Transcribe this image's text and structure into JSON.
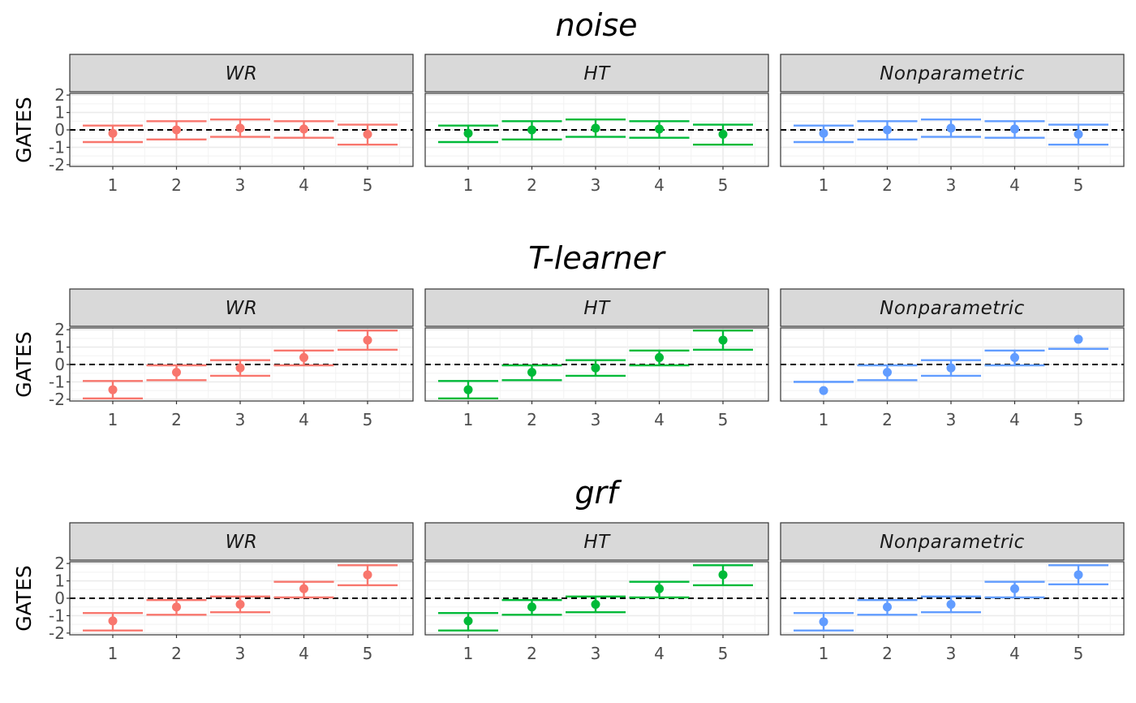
{
  "chart_data": {
    "type": "scatter",
    "ylabel": "GATES",
    "x_ticks": [
      "1",
      "2",
      "3",
      "4",
      "5"
    ],
    "ylim": [
      -2.1,
      2.1
    ],
    "y_ticks": [
      -2,
      -1,
      0,
      1,
      2
    ],
    "reference_line": {
      "y": 0,
      "style": "dashed",
      "color": "#000000"
    },
    "grid": true,
    "legend": "none",
    "facet_colors": {
      "WR": "#F8766D",
      "HT": "#00BA38",
      "Nonparametric": "#619CFF"
    },
    "rows": [
      {
        "title": "noise",
        "panels": [
          {
            "strip": "WR",
            "points": [
              {
                "x": 1,
                "y": -0.2,
                "lo": -0.7,
                "hi": 0.25
              },
              {
                "x": 2,
                "y": 0.0,
                "lo": -0.55,
                "hi": 0.5
              },
              {
                "x": 3,
                "y": 0.1,
                "lo": -0.4,
                "hi": 0.6
              },
              {
                "x": 4,
                "y": 0.05,
                "lo": -0.45,
                "hi": 0.5
              },
              {
                "x": 5,
                "y": -0.25,
                "lo": -0.85,
                "hi": 0.3
              }
            ]
          },
          {
            "strip": "HT",
            "points": [
              {
                "x": 1,
                "y": -0.2,
                "lo": -0.7,
                "hi": 0.25
              },
              {
                "x": 2,
                "y": 0.0,
                "lo": -0.55,
                "hi": 0.5
              },
              {
                "x": 3,
                "y": 0.1,
                "lo": -0.4,
                "hi": 0.6
              },
              {
                "x": 4,
                "y": 0.05,
                "lo": -0.45,
                "hi": 0.5
              },
              {
                "x": 5,
                "y": -0.25,
                "lo": -0.85,
                "hi": 0.3
              }
            ]
          },
          {
            "strip": "Nonparametric",
            "points": [
              {
                "x": 1,
                "y": -0.2,
                "lo": -0.7,
                "hi": 0.25
              },
              {
                "x": 2,
                "y": 0.0,
                "lo": -0.55,
                "hi": 0.5
              },
              {
                "x": 3,
                "y": 0.1,
                "lo": -0.4,
                "hi": 0.6
              },
              {
                "x": 4,
                "y": 0.05,
                "lo": -0.45,
                "hi": 0.5
              },
              {
                "x": 5,
                "y": -0.25,
                "lo": -0.85,
                "hi": 0.3
              }
            ]
          }
        ]
      },
      {
        "title": "T-learner",
        "panels": [
          {
            "strip": "WR",
            "points": [
              {
                "x": 1,
                "y": -1.45,
                "lo": -1.95,
                "hi": -0.95
              },
              {
                "x": 2,
                "y": -0.45,
                "lo": -0.9,
                "hi": -0.05
              },
              {
                "x": 3,
                "y": -0.2,
                "lo": -0.65,
                "hi": 0.25
              },
              {
                "x": 4,
                "y": 0.4,
                "lo": -0.05,
                "hi": 0.8
              },
              {
                "x": 5,
                "y": 1.4,
                "lo": 0.85,
                "hi": 1.95
              }
            ]
          },
          {
            "strip": "HT",
            "points": [
              {
                "x": 1,
                "y": -1.45,
                "lo": -1.95,
                "hi": -0.95
              },
              {
                "x": 2,
                "y": -0.45,
                "lo": -0.9,
                "hi": -0.05
              },
              {
                "x": 3,
                "y": -0.2,
                "lo": -0.65,
                "hi": 0.25
              },
              {
                "x": 4,
                "y": 0.4,
                "lo": -0.05,
                "hi": 0.8
              },
              {
                "x": 5,
                "y": 1.4,
                "lo": 0.85,
                "hi": 1.95
              }
            ]
          },
          {
            "strip": "Nonparametric",
            "points": [
              {
                "x": 1,
                "y": -1.5,
                "lo": -1.0,
                "hi": -1.0
              },
              {
                "x": 2,
                "y": -0.45,
                "lo": -0.9,
                "hi": -0.05
              },
              {
                "x": 3,
                "y": -0.2,
                "lo": -0.65,
                "hi": 0.25
              },
              {
                "x": 4,
                "y": 0.4,
                "lo": -0.05,
                "hi": 0.8
              },
              {
                "x": 5,
                "y": 1.45,
                "lo": 0.9,
                "hi": 0.9
              }
            ]
          }
        ]
      },
      {
        "title": "grf",
        "panels": [
          {
            "strip": "WR",
            "points": [
              {
                "x": 1,
                "y": -1.3,
                "lo": -1.85,
                "hi": -0.85
              },
              {
                "x": 2,
                "y": -0.5,
                "lo": -0.95,
                "hi": -0.1
              },
              {
                "x": 3,
                "y": -0.35,
                "lo": -0.8,
                "hi": 0.1
              },
              {
                "x": 4,
                "y": 0.55,
                "lo": 0.05,
                "hi": 0.95
              },
              {
                "x": 5,
                "y": 1.35,
                "lo": 0.75,
                "hi": 1.9
              }
            ]
          },
          {
            "strip": "HT",
            "points": [
              {
                "x": 1,
                "y": -1.3,
                "lo": -1.85,
                "hi": -0.85
              },
              {
                "x": 2,
                "y": -0.5,
                "lo": -0.95,
                "hi": -0.1
              },
              {
                "x": 3,
                "y": -0.35,
                "lo": -0.8,
                "hi": 0.1
              },
              {
                "x": 4,
                "y": 0.55,
                "lo": 0.05,
                "hi": 0.95
              },
              {
                "x": 5,
                "y": 1.35,
                "lo": 0.75,
                "hi": 1.9
              }
            ]
          },
          {
            "strip": "Nonparametric",
            "points": [
              {
                "x": 1,
                "y": -1.35,
                "lo": -1.85,
                "hi": -0.85
              },
              {
                "x": 2,
                "y": -0.5,
                "lo": -0.95,
                "hi": -0.1
              },
              {
                "x": 3,
                "y": -0.35,
                "lo": -0.8,
                "hi": 0.1
              },
              {
                "x": 4,
                "y": 0.55,
                "lo": 0.05,
                "hi": 0.95
              },
              {
                "x": 5,
                "y": 1.35,
                "lo": 0.8,
                "hi": 1.9
              }
            ]
          }
        ]
      }
    ]
  }
}
